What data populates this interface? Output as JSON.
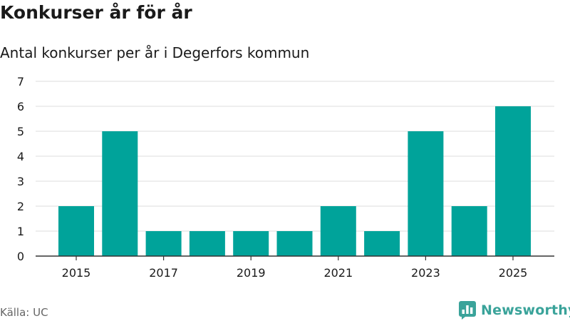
{
  "header": {
    "title": "Konkurser år för år",
    "subtitle": "Antal konkurser per år i Degerfors kommun"
  },
  "footer": {
    "source": "Källa: UC",
    "brand_name": "Newsworthy",
    "brand_icon": "newsworthy-logo-icon",
    "brand_color": "#3aa39a"
  },
  "chart_data": {
    "type": "bar",
    "title": "Konkurser år för år",
    "subtitle": "Antal konkurser per år i Degerfors kommun",
    "xlabel": "",
    "ylabel": "",
    "categories": [
      "2015",
      "2016",
      "2017",
      "2018",
      "2019",
      "2020",
      "2021",
      "2022",
      "2023",
      "2024",
      "2025"
    ],
    "values": [
      2,
      5,
      1,
      1,
      1,
      1,
      2,
      1,
      5,
      2,
      6
    ],
    "x_tick_labels": [
      "2015",
      "2017",
      "2019",
      "2021",
      "2023",
      "2025"
    ],
    "y_ticks": [
      0,
      1,
      2,
      3,
      4,
      5,
      6,
      7
    ],
    "ylim": [
      0,
      7
    ],
    "grid": true,
    "legend": "none",
    "bar_color": "#00a39a",
    "grid_color": "#dddddd",
    "axis_color": "#333333"
  }
}
